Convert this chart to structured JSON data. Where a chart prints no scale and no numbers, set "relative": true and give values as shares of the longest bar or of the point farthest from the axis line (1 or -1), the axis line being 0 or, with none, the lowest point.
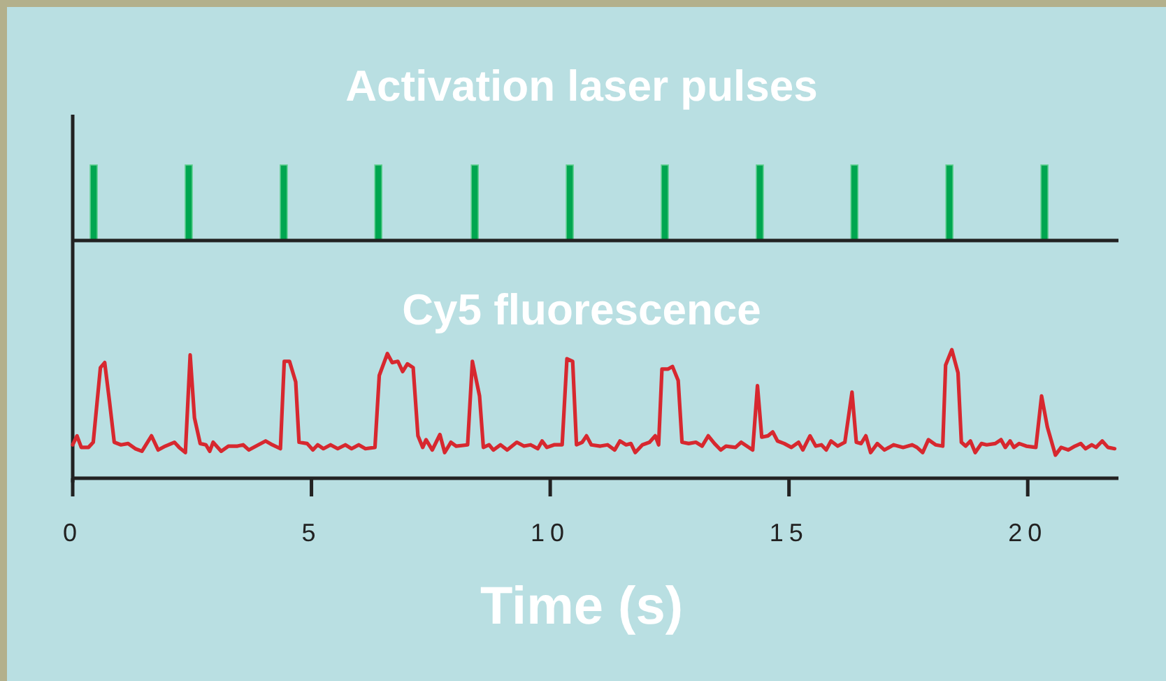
{
  "chart_data": [
    {
      "type": "bar",
      "title": "Activation laser pulses",
      "relative": true,
      "x": [
        0.44,
        2.43,
        4.42,
        6.4,
        8.42,
        10.41,
        12.4,
        14.39,
        16.37,
        18.36,
        20.35
      ],
      "xlim": [
        0,
        21.9
      ],
      "tick_labels": false,
      "color": "#00a650",
      "values": [
        1,
        1,
        1,
        1,
        1,
        1,
        1,
        1,
        1,
        1,
        1
      ]
    },
    {
      "type": "line",
      "title": "Cy5 fluorescence",
      "xlabel": "Time (s)",
      "relative": true,
      "xlim": [
        0,
        21.9
      ],
      "xticks": [
        0,
        5,
        10,
        15,
        20
      ],
      "tick_labels": "x",
      "color": "#d7282f",
      "x": [
        0.0,
        0.09,
        0.18,
        0.33,
        0.43,
        0.58,
        0.67,
        0.77,
        0.87,
        1.01,
        1.16,
        1.31,
        1.45,
        1.65,
        1.79,
        1.94,
        2.13,
        2.23,
        2.36,
        2.46,
        2.55,
        2.67,
        2.79,
        2.87,
        2.94,
        3.11,
        3.26,
        3.45,
        3.57,
        3.69,
        3.84,
        4.04,
        4.18,
        4.35,
        4.43,
        4.54,
        4.67,
        4.74,
        4.91,
        5.03,
        5.13,
        5.25,
        5.4,
        5.55,
        5.71,
        5.84,
        5.99,
        6.13,
        6.33,
        6.42,
        6.59,
        6.69,
        6.81,
        6.91,
        7.01,
        7.13,
        7.23,
        7.33,
        7.4,
        7.53,
        7.69,
        7.79,
        7.92,
        8.03,
        8.27,
        8.37,
        8.52,
        8.6,
        8.72,
        8.81,
        8.96,
        9.1,
        9.3,
        9.45,
        9.59,
        9.74,
        9.83,
        9.93,
        10.08,
        10.25,
        10.35,
        10.47,
        10.55,
        10.67,
        10.76,
        10.86,
        11.05,
        11.2,
        11.35,
        11.46,
        11.59,
        11.69,
        11.78,
        11.93,
        12.08,
        12.2,
        12.27,
        12.34,
        12.47,
        12.56,
        12.68,
        12.76,
        12.9,
        13.05,
        13.18,
        13.31,
        13.44,
        13.57,
        13.68,
        13.88,
        14.0,
        14.12,
        14.24,
        14.34,
        14.43,
        14.56,
        14.66,
        14.76,
        14.9,
        15.05,
        15.2,
        15.29,
        15.44,
        15.56,
        15.68,
        15.78,
        15.88,
        16.02,
        16.17,
        16.32,
        16.41,
        16.51,
        16.61,
        16.71,
        16.85,
        17.0,
        17.19,
        17.39,
        17.58,
        17.68,
        17.8,
        17.92,
        18.07,
        18.22,
        18.28,
        18.41,
        18.54,
        18.61,
        18.7,
        18.8,
        18.9,
        19.03,
        19.14,
        19.32,
        19.44,
        19.53,
        19.63,
        19.71,
        19.82,
        19.97,
        20.17,
        20.29,
        20.41,
        20.58,
        20.7,
        20.85,
        20.99,
        21.11,
        21.21,
        21.34,
        21.43,
        21.56,
        21.68,
        21.82
      ],
      "values": [
        0.26,
        0.33,
        0.24,
        0.24,
        0.28,
        0.86,
        0.9,
        0.6,
        0.28,
        0.26,
        0.27,
        0.23,
        0.21,
        0.33,
        0.22,
        0.25,
        0.28,
        0.24,
        0.2,
        0.96,
        0.47,
        0.27,
        0.26,
        0.21,
        0.28,
        0.21,
        0.25,
        0.25,
        0.26,
        0.22,
        0.25,
        0.29,
        0.26,
        0.23,
        0.91,
        0.91,
        0.75,
        0.28,
        0.27,
        0.22,
        0.26,
        0.23,
        0.26,
        0.23,
        0.26,
        0.23,
        0.26,
        0.23,
        0.24,
        0.8,
        0.97,
        0.9,
        0.91,
        0.83,
        0.89,
        0.86,
        0.33,
        0.24,
        0.3,
        0.22,
        0.34,
        0.2,
        0.28,
        0.25,
        0.26,
        0.91,
        0.64,
        0.24,
        0.26,
        0.22,
        0.26,
        0.22,
        0.28,
        0.25,
        0.26,
        0.23,
        0.29,
        0.24,
        0.26,
        0.26,
        0.93,
        0.91,
        0.26,
        0.28,
        0.33,
        0.26,
        0.25,
        0.26,
        0.22,
        0.29,
        0.26,
        0.27,
        0.2,
        0.26,
        0.28,
        0.33,
        0.26,
        0.85,
        0.85,
        0.87,
        0.76,
        0.28,
        0.27,
        0.28,
        0.25,
        0.33,
        0.27,
        0.22,
        0.25,
        0.24,
        0.28,
        0.25,
        0.22,
        0.72,
        0.32,
        0.33,
        0.36,
        0.29,
        0.27,
        0.24,
        0.28,
        0.22,
        0.33,
        0.25,
        0.26,
        0.22,
        0.29,
        0.25,
        0.28,
        0.67,
        0.28,
        0.27,
        0.33,
        0.2,
        0.27,
        0.22,
        0.26,
        0.24,
        0.26,
        0.24,
        0.2,
        0.3,
        0.26,
        0.25,
        0.88,
        1.0,
        0.82,
        0.28,
        0.25,
        0.29,
        0.2,
        0.27,
        0.26,
        0.27,
        0.3,
        0.24,
        0.29,
        0.24,
        0.27,
        0.25,
        0.24,
        0.64,
        0.4,
        0.18,
        0.24,
        0.22,
        0.25,
        0.27,
        0.23,
        0.26,
        0.24,
        0.29,
        0.24,
        0.23
      ]
    }
  ]
}
